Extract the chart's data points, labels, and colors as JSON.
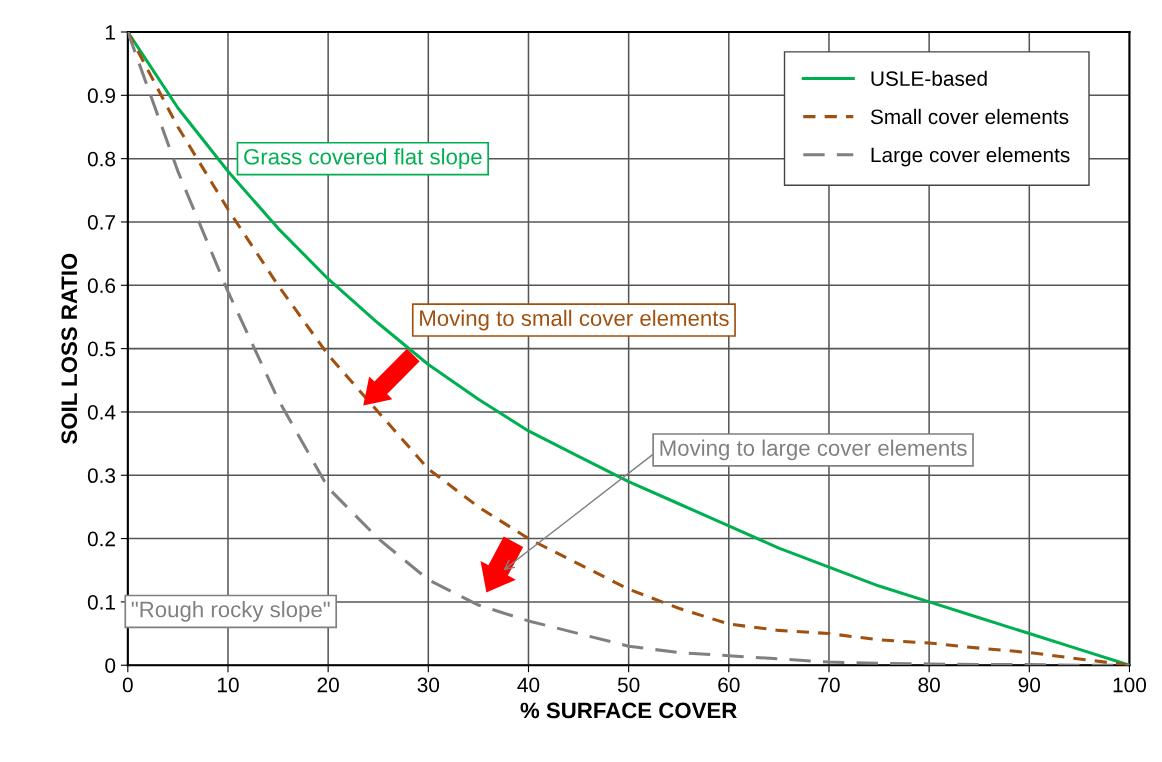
{
  "chart_data": {
    "type": "line",
    "xlabel": "% SURFACE COVER",
    "ylabel": "SOIL LOSS RATIO",
    "x": [
      0,
      5,
      10,
      15,
      20,
      25,
      30,
      35,
      40,
      45,
      50,
      55,
      60,
      65,
      70,
      75,
      80,
      85,
      90,
      95,
      100
    ],
    "series": [
      {
        "name": "USLE-based",
        "color": "#00b050",
        "line_style": "solid",
        "values": [
          1,
          0.88,
          0.78,
          0.69,
          0.61,
          0.54,
          0.475,
          0.42,
          0.37,
          0.33,
          0.29,
          0.255,
          0.22,
          0.185,
          0.155,
          0.125,
          0.1,
          0.075,
          0.05,
          0.025,
          0
        ]
      },
      {
        "name": "Small cover elements",
        "color": "#a0500f",
        "line_style": "dashed",
        "values": [
          1,
          0.85,
          0.72,
          0.6,
          0.49,
          0.4,
          0.31,
          0.25,
          0.2,
          0.16,
          0.12,
          0.09,
          0.065,
          0.055,
          0.05,
          0.04,
          0.035,
          0.027,
          0.02,
          0.01,
          0
        ]
      },
      {
        "name": "Large cover elements",
        "color": "#808080",
        "line_style": "dashed",
        "values": [
          1,
          0.78,
          0.59,
          0.42,
          0.28,
          0.2,
          0.135,
          0.095,
          0.07,
          0.05,
          0.03,
          0.02,
          0.015,
          0.01,
          0.005,
          0.003,
          0.002,
          0.001,
          0.001,
          0,
          0
        ]
      }
    ],
    "xlim": [
      0,
      100
    ],
    "ylim": [
      0,
      1
    ],
    "xticks": [
      0,
      10,
      20,
      30,
      40,
      50,
      60,
      70,
      80,
      90,
      100
    ],
    "yticks": [
      0,
      0.1,
      0.2,
      0.3,
      0.4,
      0.5,
      0.6,
      0.7,
      0.8,
      0.9,
      1
    ],
    "grid": true,
    "legend": "top right",
    "marker": "none",
    "annotations": [
      "Grass covered flat slope",
      "Moving to small cover elements",
      "Moving to large cover elements",
      "\"Rough rocky slope\""
    ]
  }
}
